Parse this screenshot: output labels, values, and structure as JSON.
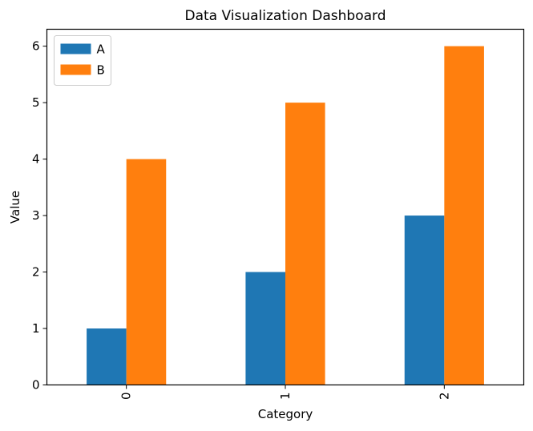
{
  "chart_data": {
    "type": "bar",
    "title": "Data Visualization Dashboard",
    "xlabel": "Category",
    "ylabel": "Value",
    "categories": [
      "0",
      "1",
      "2"
    ],
    "series": [
      {
        "name": "A",
        "values": [
          1,
          2,
          3
        ],
        "color": "#1f77b4"
      },
      {
        "name": "B",
        "values": [
          4,
          5,
          6
        ],
        "color": "#ff7f0e"
      }
    ],
    "ylim": [
      0,
      6.3
    ],
    "yticks": [
      0,
      1,
      2,
      3,
      4,
      5,
      6
    ],
    "x_tick_rotation": 90,
    "grid": false,
    "legend_position": "upper left"
  }
}
